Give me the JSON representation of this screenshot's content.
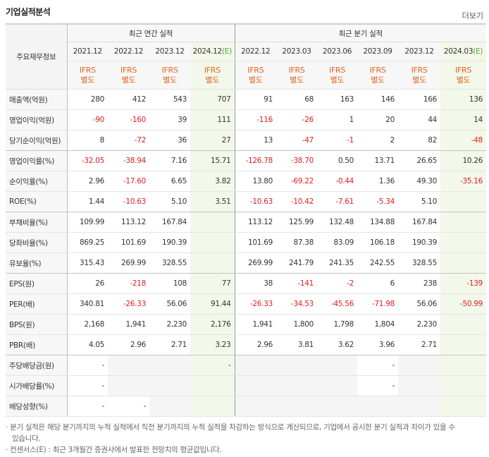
{
  "header": {
    "title": "기업실적분석",
    "more": "더보기"
  },
  "table": {
    "corner": "주요재무정보",
    "groups": [
      "최근 연간 실적",
      "최근 분기 실적"
    ],
    "periods": [
      "2021.12",
      "2022.12",
      "2023.12",
      "2024.12(E)",
      "2022.12",
      "2023.03",
      "2023.06",
      "2023.09",
      "2023.12",
      "2024.03(E)"
    ],
    "basis": [
      [
        "IFRS",
        "별도"
      ],
      [
        "IFRS",
        "별도"
      ],
      [
        "IFRS",
        "별도"
      ],
      [
        "IFRS",
        "별도"
      ],
      [
        "IFRS",
        "별도"
      ],
      [
        "IFRS",
        "별도"
      ],
      [
        "IFRS",
        "별도"
      ],
      [
        "IFRS",
        "별도"
      ],
      [
        "IFRS",
        "별도"
      ],
      [
        "IFRS",
        "별도"
      ]
    ],
    "rows": [
      {
        "label": "매출액(억원)",
        "values": [
          "280",
          "412",
          "543",
          "707",
          "91",
          "68",
          "163",
          "146",
          "166",
          "136"
        ]
      },
      {
        "label": "영업이익(억원)",
        "values": [
          "-90",
          "-160",
          "39",
          "111",
          "-116",
          "-26",
          "1",
          "20",
          "44",
          "14"
        ]
      },
      {
        "label": "당기순이익(억원)",
        "values": [
          "8",
          "-72",
          "36",
          "27",
          "13",
          "-47",
          "-1",
          "2",
          "82",
          "-48"
        ]
      },
      {
        "label": "영업이익률(%)",
        "values": [
          "-32.05",
          "-38.94",
          "7.16",
          "15.71",
          "-126.78",
          "-38.70",
          "0.50",
          "13.71",
          "26.65",
          "10.26"
        ]
      },
      {
        "label": "순이익률(%)",
        "values": [
          "2.96",
          "-17.60",
          "6.65",
          "3.82",
          "13.80",
          "-69.22",
          "-0.44",
          "1.36",
          "49.30",
          "-35.16"
        ]
      },
      {
        "label": "ROE(%)",
        "values": [
          "1.44",
          "-10.63",
          "5.10",
          "3.51",
          "-10.63",
          "-10.42",
          "-7.61",
          "-5.34",
          "5.10",
          null
        ]
      },
      {
        "label": "부채비율(%)",
        "values": [
          "109.99",
          "113.12",
          "167.84",
          null,
          "113.12",
          "125.99",
          "132.48",
          "134.88",
          "167.84",
          null
        ]
      },
      {
        "label": "당좌비율(%)",
        "values": [
          "869.25",
          "101.69",
          "190.39",
          null,
          "101.69",
          "87.38",
          "83.09",
          "106.18",
          "190.39",
          null
        ]
      },
      {
        "label": "유보율(%)",
        "values": [
          "315.43",
          "269.99",
          "328.55",
          null,
          "269.99",
          "241.79",
          "241.35",
          "242.55",
          "328.55",
          null
        ]
      },
      {
        "label": "EPS(원)",
        "values": [
          "26",
          "-218",
          "108",
          "77",
          "38",
          "-141",
          "-2",
          "6",
          "238",
          "-139"
        ]
      },
      {
        "label": "PER(배)",
        "values": [
          "340.81",
          "-26.33",
          "56.06",
          "91.44",
          "-26.33",
          "-34.53",
          "-45.56",
          "-71.98",
          "56.06",
          "-50.99"
        ]
      },
      {
        "label": "BPS(원)",
        "values": [
          "2,168",
          "1,941",
          "2,230",
          "2,176",
          "1,941",
          "1,800",
          "1,798",
          "1,804",
          "2,230",
          null
        ]
      },
      {
        "label": "PBR(배)",
        "values": [
          "4.05",
          "2.96",
          "2.71",
          "3.23",
          "2.96",
          "3.81",
          "3.62",
          "3.96",
          "2.71",
          null
        ]
      },
      {
        "label": "주당배당금(원)",
        "values": [
          "-",
          null,
          null,
          "-",
          null,
          null,
          null,
          "-",
          null,
          null
        ]
      },
      {
        "label": "시가배당률(%)",
        "values": [
          "-",
          null,
          null,
          null,
          null,
          null,
          null,
          "-",
          null,
          null
        ]
      },
      {
        "label": "배당성향(%)",
        "values": [
          "-",
          "-",
          null,
          null,
          null,
          null,
          null,
          null,
          null,
          null
        ]
      }
    ]
  },
  "notes": [
    "분기 실적은 해당 분기까지의 누적 실적에서 직전 분기까지의 누적 실적을 차감하는 방식으로 계산되므로, 기업에서 공시한 분기 실적과 차이가 있을 수 있습니다.",
    "컨센서스(E) : 최근 3개월간 증권사에서 발표한 전망치의 평균값입니다."
  ]
}
